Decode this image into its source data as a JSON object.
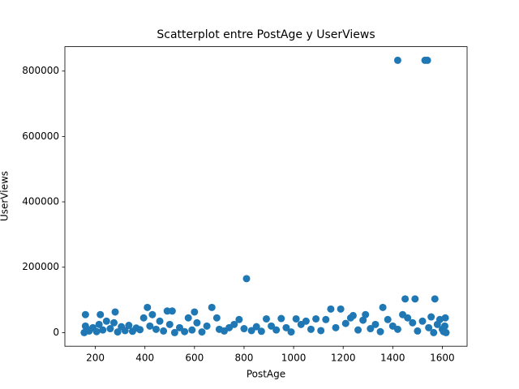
{
  "chart_data": {
    "type": "scatter",
    "title": "Scatterplot entre PostAge y UserViews",
    "x_label": "PostAge",
    "y_label": "UserViews",
    "color": "#1f77b4",
    "xlim": [
      77,
      1700
    ],
    "ylim": [
      -41650,
      874650
    ],
    "xticks": [
      200,
      400,
      600,
      800,
      1000,
      1200,
      1400,
      1600
    ],
    "yticks": [
      0,
      200000,
      400000,
      600000,
      800000
    ],
    "x": [
      155,
      160,
      165,
      175,
      190,
      205,
      215,
      230,
      245,
      260,
      275,
      290,
      305,
      320,
      335,
      350,
      365,
      380,
      395,
      420,
      445,
      460,
      475,
      500,
      520,
      540,
      560,
      575,
      590,
      610,
      630,
      650,
      690,
      700,
      720,
      740,
      760,
      780,
      800,
      830,
      850,
      870,
      890,
      910,
      930,
      950,
      970,
      990,
      1010,
      1030,
      1050,
      1070,
      1090,
      1110,
      1130,
      1170,
      1210,
      1230,
      1260,
      1280,
      1310,
      1330,
      1350,
      1380,
      1400,
      1420,
      1460,
      1480,
      1500,
      1520,
      1545,
      1555,
      1565,
      1580,
      1590,
      1600,
      1605,
      1610,
      1615,
      1612,
      1420,
      1530,
      1540,
      810,
      1450,
      1490,
      1570,
      1360,
      410,
      670,
      160,
      220,
      280,
      430,
      490,
      510,
      600,
      1150,
      1190,
      1290,
      1240,
      1440
    ],
    "values": [
      0,
      20000,
      10000,
      5000,
      15000,
      3000,
      25000,
      8000,
      35000,
      12000,
      30000,
      2000,
      18000,
      6000,
      22000,
      4000,
      14000,
      9000,
      45000,
      20000,
      10000,
      35000,
      5000,
      25000,
      0,
      15000,
      3000,
      45000,
      8000,
      30000,
      2000,
      20000,
      45000,
      10000,
      5000,
      15000,
      25000,
      40000,
      12000,
      6000,
      18000,
      4000,
      42000,
      20000,
      8000,
      43000,
      15000,
      2000,
      42000,
      25000,
      35000,
      10000,
      42000,
      6000,
      40000,
      15000,
      28000,
      45000,
      8000,
      38000,
      12000,
      25000,
      3000,
      40000,
      20000,
      10000,
      45000,
      30000,
      5000,
      35000,
      15000,
      48000,
      0,
      25000,
      40000,
      10000,
      3000,
      20000,
      0,
      45000,
      833000,
      833000,
      833000,
      165000,
      103000,
      103000,
      103000,
      77000,
      77000,
      77000,
      55000,
      55000,
      63000,
      55000,
      66000,
      66000,
      63000,
      72000,
      72000,
      55000,
      52000,
      55000
    ]
  }
}
